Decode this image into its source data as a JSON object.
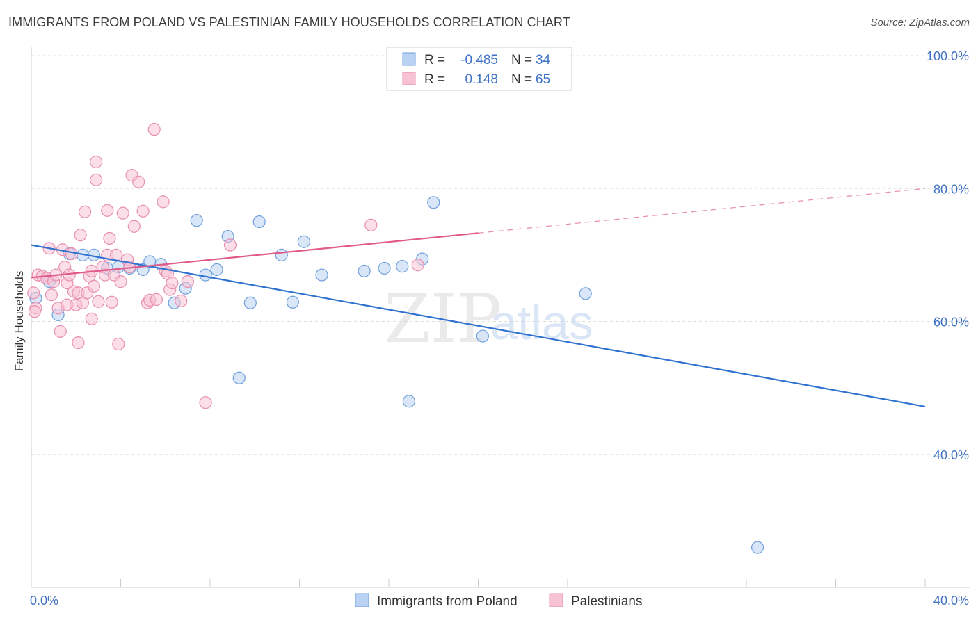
{
  "title": "IMMIGRANTS FROM POLAND VS PALESTINIAN FAMILY HOUSEHOLDS CORRELATION CHART",
  "source": "Source: ZipAtlas.com",
  "watermark": {
    "zip": "ZIP",
    "atlas": "atlas"
  },
  "colors": {
    "blue_fill": "#b9d2f3",
    "blue_stroke": "#6f9fdc",
    "blue_line": "#2f72d0",
    "pink_fill": "#f7c2d3",
    "pink_stroke": "#e88fb0",
    "pink_line": "#e05a8a",
    "grid": "#dddddd",
    "tick_text": "#3f72c4"
  },
  "legend": {
    "rows": [
      {
        "r_label": "R =",
        "r_value": "-0.485",
        "n_label": "N =",
        "n_value": "34",
        "series": "blue"
      },
      {
        "r_label": "R =",
        "r_value": "0.148",
        "n_label": "N =",
        "n_value": "65",
        "series": "pink"
      }
    ]
  },
  "bottom_legend": [
    {
      "label": "Immigrants from Poland",
      "series": "blue"
    },
    {
      "label": "Palestinians",
      "series": "pink"
    }
  ],
  "chart_data": {
    "type": "scatter",
    "title": "IMMIGRANTS FROM POLAND VS PALESTINIAN FAMILY HOUSEHOLDS CORRELATION CHART",
    "xlabel": "",
    "ylabel": "Family Households",
    "xlim": [
      0,
      40
    ],
    "ylim": [
      20,
      100
    ],
    "x_tick_labels": [
      "0.0%",
      "40.0%"
    ],
    "y_ticks": [
      {
        "value": 40,
        "label": "40.0%"
      },
      {
        "value": 60,
        "label": "60.0%"
      },
      {
        "value": 80,
        "label": "80.0%"
      },
      {
        "value": 100,
        "label": "100.0%"
      }
    ],
    "grid": true,
    "legend_position": "top-center",
    "series": [
      {
        "name": "Immigrants from Poland",
        "color": "#6f9fdc",
        "trend": {
          "x0": 0,
          "y0": 71.5,
          "x1": 40,
          "y1": 47.2,
          "dashed_after": null
        },
        "points": [
          [
            0.2,
            63.5
          ],
          [
            0.8,
            66.0
          ],
          [
            1.2,
            61.0
          ],
          [
            1.7,
            70.2
          ],
          [
            2.3,
            70.0
          ],
          [
            2.8,
            70.0
          ],
          [
            3.4,
            68.0
          ],
          [
            3.9,
            68.2
          ],
          [
            4.4,
            68.0
          ],
          [
            5.0,
            67.8
          ],
          [
            5.3,
            69.0
          ],
          [
            5.8,
            68.6
          ],
          [
            6.4,
            62.8
          ],
          [
            6.9,
            65.0
          ],
          [
            7.4,
            75.2
          ],
          [
            7.8,
            67.0
          ],
          [
            8.3,
            67.8
          ],
          [
            8.8,
            72.8
          ],
          [
            9.3,
            51.5
          ],
          [
            9.8,
            62.8
          ],
          [
            10.2,
            75.0
          ],
          [
            11.2,
            70.0
          ],
          [
            11.7,
            62.9
          ],
          [
            12.2,
            72.0
          ],
          [
            13.0,
            67.0
          ],
          [
            14.9,
            67.6
          ],
          [
            15.8,
            68.0
          ],
          [
            16.6,
            68.3
          ],
          [
            16.9,
            48.0
          ],
          [
            17.5,
            69.4
          ],
          [
            18.0,
            77.9
          ],
          [
            20.2,
            57.8
          ],
          [
            24.8,
            64.2
          ],
          [
            32.5,
            26.0
          ]
        ]
      },
      {
        "name": "Palestinians",
        "color": "#e88fb0",
        "trend": {
          "x0": 0,
          "y0": 66.6,
          "x1": 20,
          "y1": 73.3,
          "extend_x": 40,
          "extend_y": 80.0
        },
        "points": [
          [
            0.2,
            62.0
          ],
          [
            0.3,
            67.0
          ],
          [
            0.5,
            66.8
          ],
          [
            0.7,
            66.5
          ],
          [
            0.8,
            71.0
          ],
          [
            0.9,
            64.0
          ],
          [
            1.0,
            66.0
          ],
          [
            1.1,
            67.0
          ],
          [
            1.2,
            62.0
          ],
          [
            1.3,
            58.5
          ],
          [
            1.4,
            70.8
          ],
          [
            1.5,
            68.2
          ],
          [
            1.6,
            62.5
          ],
          [
            1.6,
            65.8
          ],
          [
            1.7,
            67.0
          ],
          [
            1.8,
            70.2
          ],
          [
            1.9,
            64.5
          ],
          [
            2.0,
            62.5
          ],
          [
            2.1,
            56.8
          ],
          [
            2.1,
            64.3
          ],
          [
            2.2,
            73.0
          ],
          [
            2.3,
            62.8
          ],
          [
            2.4,
            76.5
          ],
          [
            2.5,
            64.3
          ],
          [
            2.6,
            66.8
          ],
          [
            2.7,
            67.6
          ],
          [
            2.7,
            60.4
          ],
          [
            2.8,
            65.3
          ],
          [
            2.9,
            84.0
          ],
          [
            2.9,
            81.3
          ],
          [
            3.0,
            63.0
          ],
          [
            3.2,
            68.2
          ],
          [
            3.3,
            67.0
          ],
          [
            3.4,
            76.7
          ],
          [
            3.4,
            70.0
          ],
          [
            3.5,
            72.5
          ],
          [
            3.6,
            62.9
          ],
          [
            3.7,
            67.0
          ],
          [
            3.8,
            70.0
          ],
          [
            3.9,
            56.6
          ],
          [
            4.0,
            66.0
          ],
          [
            4.1,
            76.3
          ],
          [
            4.3,
            69.3
          ],
          [
            4.4,
            68.2
          ],
          [
            4.5,
            82.0
          ],
          [
            4.6,
            74.3
          ],
          [
            4.8,
            81.0
          ],
          [
            5.0,
            76.6
          ],
          [
            5.2,
            62.8
          ],
          [
            5.3,
            63.2
          ],
          [
            5.5,
            88.9
          ],
          [
            5.6,
            63.3
          ],
          [
            5.9,
            78.0
          ],
          [
            6.0,
            67.6
          ],
          [
            6.1,
            67.2
          ],
          [
            6.2,
            64.8
          ],
          [
            6.3,
            65.8
          ],
          [
            6.7,
            63.1
          ],
          [
            7.0,
            66.0
          ],
          [
            7.8,
            47.8
          ],
          [
            8.9,
            71.5
          ],
          [
            15.2,
            74.5
          ],
          [
            17.3,
            68.5
          ],
          [
            0.1,
            64.3
          ],
          [
            0.15,
            61.5
          ]
        ]
      }
    ]
  }
}
